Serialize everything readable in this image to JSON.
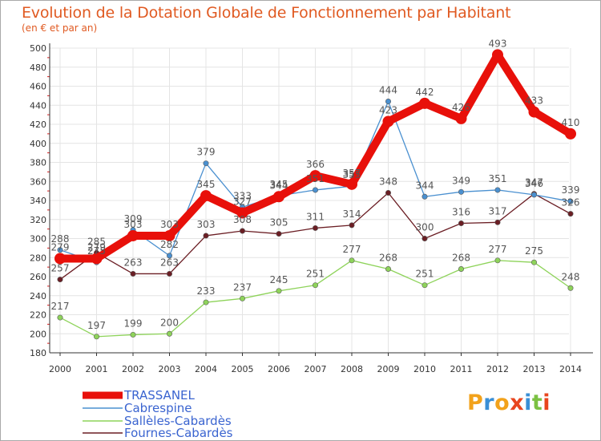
{
  "title": "Evolution de la Dotation Globale de Fonctionnement par Habitant",
  "subtitle": "(en € et par an)",
  "brand": {
    "text": "Proxiti",
    "colors": [
      "#f2a21b",
      "#3a8fd6",
      "#f2a21b",
      "#e8451e",
      "#3a8fd6",
      "#7bc142",
      "#e8451e"
    ]
  },
  "colors": {
    "accent": "#e05a22",
    "grid": "#e6e6e6",
    "legend_text": "#3a64d0"
  },
  "chart_data": {
    "type": "line",
    "x": [
      "2000",
      "2001",
      "2002",
      "2003",
      "2004",
      "2005",
      "2006",
      "2007",
      "2008",
      "2009",
      "2010",
      "2011",
      "2012",
      "2013",
      "2014"
    ],
    "ylim": [
      180,
      500
    ],
    "yticks": [
      180,
      200,
      220,
      240,
      260,
      280,
      300,
      320,
      340,
      360,
      380,
      400,
      420,
      440,
      460,
      480,
      500
    ],
    "grid": true,
    "legend_position": "bottom-left",
    "series": [
      {
        "name": "TRASSANEL",
        "color": "#e8100a",
        "values": [
          279,
          279,
          303,
          303,
          345,
          327,
          344,
          366,
          357,
          423,
          442,
          426,
          493,
          433,
          410
        ],
        "emphasis": true
      },
      {
        "name": "Cabrespine",
        "color": "#4a90d0",
        "values": [
          288,
          275,
          309,
          282,
          379,
          333,
          345,
          351,
          355,
          444,
          344,
          349,
          351,
          346,
          339
        ]
      },
      {
        "name": "Sallèles-Cabardès",
        "color": "#8ed35a",
        "values": [
          217,
          197,
          199,
          200,
          233,
          237,
          245,
          251,
          277,
          268,
          251,
          268,
          277,
          275,
          248
        ]
      },
      {
        "name": "Fournes-Cabardès",
        "color": "#6b1e24",
        "values": [
          257,
          285,
          263,
          263,
          303,
          308,
          305,
          311,
          314,
          348,
          300,
          316,
          317,
          347,
          326
        ]
      }
    ]
  }
}
